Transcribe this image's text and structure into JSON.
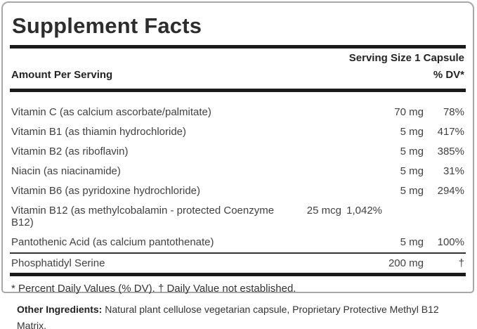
{
  "supplement_label": {
    "title": "Supplement Facts",
    "serving_size": "Serving Size 1 Capsule",
    "column_headers": {
      "amount": "Amount Per Serving",
      "dv": "% DV*"
    },
    "rows": [
      {
        "name": "Vitamin C (as calcium ascorbate/palmitate)",
        "amount": "70 mg",
        "dv": "78%"
      },
      {
        "name": "Vitamin B1 (as thiamin hydrochloride)",
        "amount": "5 mg",
        "dv": "417%"
      },
      {
        "name": "Vitamin B2 (as riboflavin)",
        "amount": "5 mg",
        "dv": "385%"
      },
      {
        "name": "Niacin (as niacinamide)",
        "amount": "5 mg",
        "dv": "31%"
      },
      {
        "name": "Vitamin B6 (as pyridoxine hydrochloride)",
        "amount": "5 mg",
        "dv": "294%"
      },
      {
        "name": "Vitamin B12 (as methylcobalamin - protected Coenzyme B12)",
        "amount": "25 mcg",
        "dv": "1,042%"
      },
      {
        "name": "Pantothenic Acid (as calcium pantothenate)",
        "amount": "5 mg",
        "dv": "100%"
      }
    ],
    "special_row": {
      "name": "Phosphatidyl Serine",
      "amount": "200 mg",
      "dv": "†"
    },
    "footnote": "* Percent Daily Values (% DV). † Daily Value not established.",
    "other_ingredients": {
      "label": "Other Ingredients:",
      "text": " Natural plant cellulose vegetarian capsule, Proprietary Protective Methyl B12 Matrix."
    },
    "colors": {
      "divider_heavy": "#1b1b1b",
      "divider_thin": "#333333",
      "box_border": "#a8a8a8",
      "text": "#414141",
      "heading_text": "#242424",
      "background": "#ffffff"
    }
  }
}
